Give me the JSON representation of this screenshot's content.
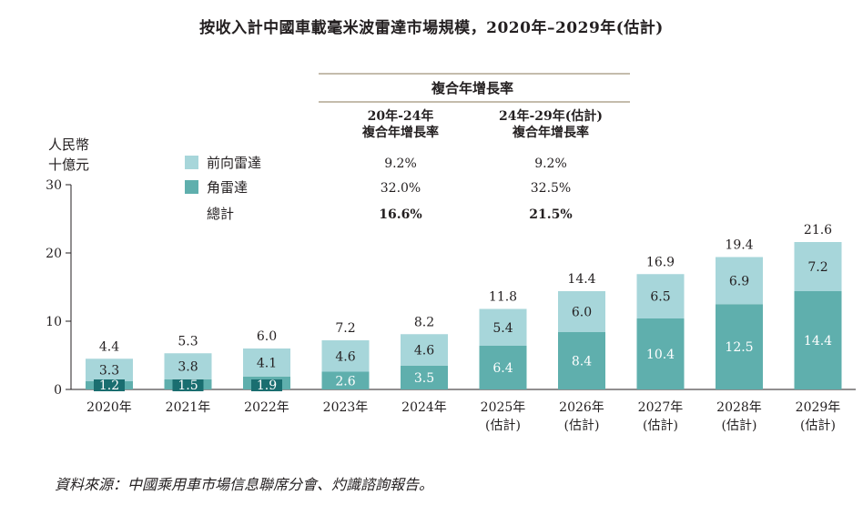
{
  "title": "按收入計中國車載毫米波雷達市場規模，2020年–2029年(估計)",
  "source": "資料來源：中國乘用車市場信息聯席分會、灼識諮詢報告。",
  "colors": {
    "front": "#a7d6da",
    "corner": "#5fafad",
    "text": "#231f20",
    "axis": "#231f20",
    "rule": "#8a7a5a"
  },
  "chart_data": {
    "type": "bar",
    "stacked": true,
    "title": "按收入計中國車載毫米波雷達市場規模，2020年–2029年(估計)",
    "ylabel_lines": [
      "人民幣",
      "十億元"
    ],
    "ylim": [
      0,
      30
    ],
    "yticks": [
      0,
      10,
      20,
      30
    ],
    "categories": [
      [
        "2020年"
      ],
      [
        "2021年"
      ],
      [
        "2022年"
      ],
      [
        "2023年"
      ],
      [
        "2024年"
      ],
      [
        "2025年",
        "(估計)"
      ],
      [
        "2026年",
        "(估計)"
      ],
      [
        "2027年",
        "(估計)"
      ],
      [
        "2028年",
        "(估計)"
      ],
      [
        "2029年",
        "(估計)"
      ]
    ],
    "series": [
      {
        "name": "角雷達",
        "key": "corner",
        "values": [
          1.2,
          1.5,
          1.9,
          2.6,
          3.5,
          6.4,
          8.4,
          10.4,
          12.5,
          14.4
        ]
      },
      {
        "name": "前向雷達",
        "key": "front",
        "values": [
          3.3,
          3.8,
          4.1,
          4.6,
          4.6,
          5.4,
          6.0,
          6.5,
          6.9,
          7.2
        ]
      }
    ],
    "totals": [
      4.4,
      5.3,
      6.0,
      7.2,
      8.2,
      11.8,
      14.4,
      16.9,
      19.4,
      21.6
    ],
    "legend": [
      {
        "label": "前向雷達",
        "key": "front"
      },
      {
        "label": "角雷達",
        "key": "corner"
      },
      {
        "label": "總計",
        "key": ""
      }
    ],
    "cagr": {
      "header": "複合年增長率",
      "col1": [
        "20年-24年",
        "複合年增長率"
      ],
      "col2": [
        "24年-29年(估計)",
        "複合年增長率"
      ],
      "rows": [
        {
          "c1": "9.2%",
          "c2": "9.2%",
          "bold": false
        },
        {
          "c1": "32.0%",
          "c2": "32.5%",
          "bold": false
        },
        {
          "c1": "16.6%",
          "c2": "21.5%",
          "bold": true
        }
      ]
    }
  }
}
